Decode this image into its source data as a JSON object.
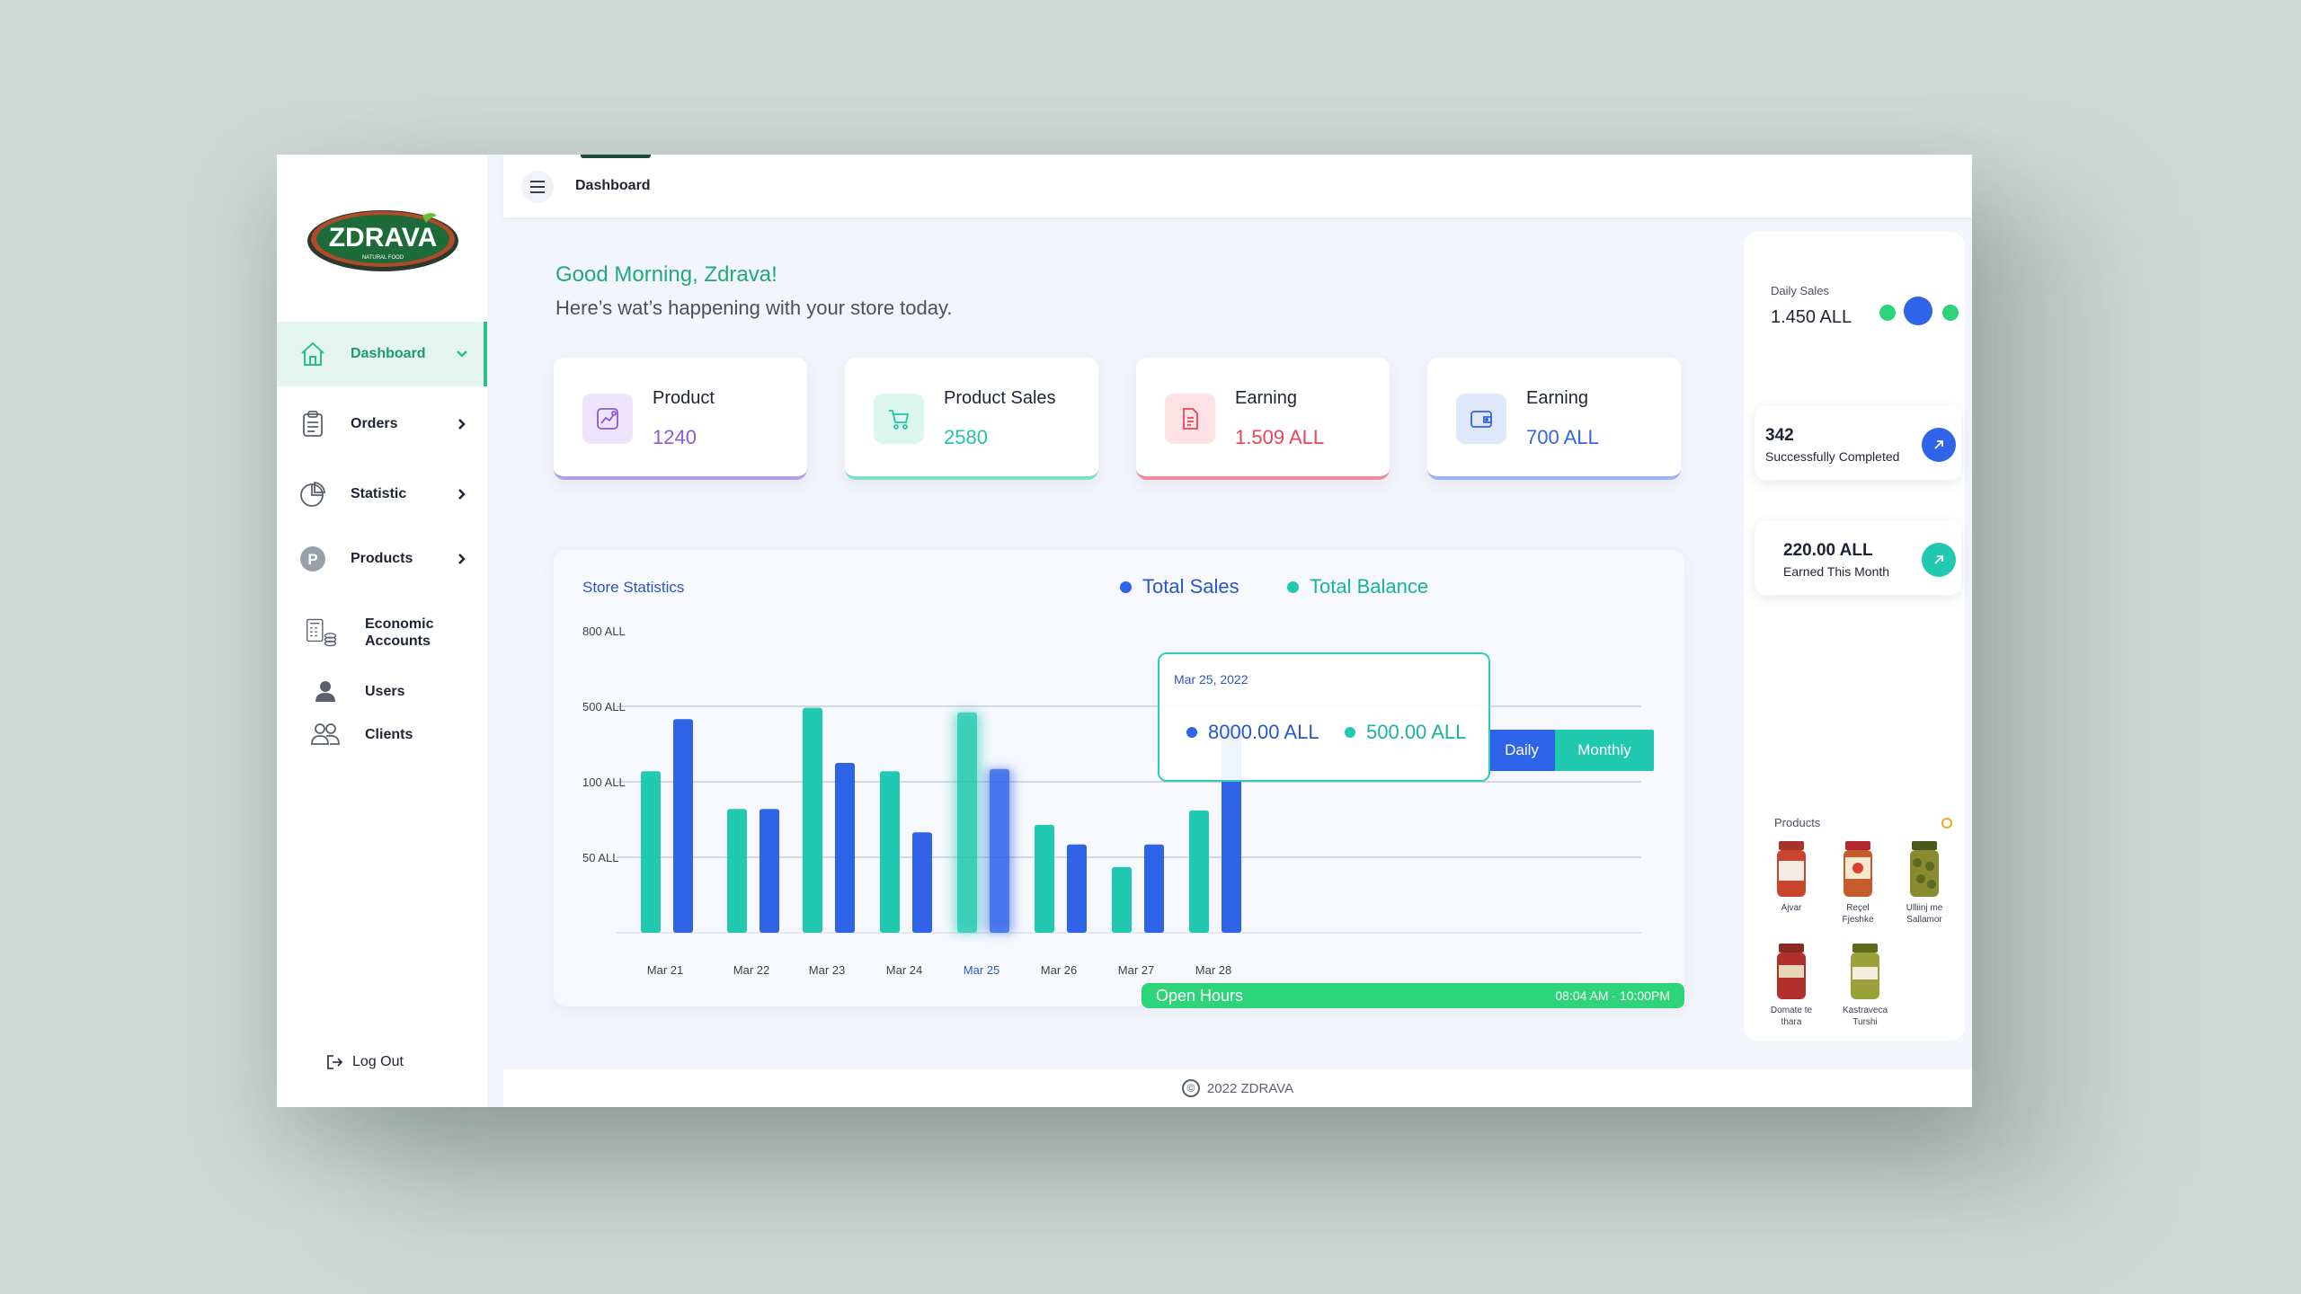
{
  "app": {
    "brand": "ZDRAVA",
    "brand_tagline": "NATURAL FOOD"
  },
  "sidebar": {
    "items": [
      {
        "label": "Dashboard",
        "icon": "home-icon"
      },
      {
        "label": "Orders",
        "icon": "clipboard-icon"
      },
      {
        "label": "Statistic",
        "icon": "pie-chart-icon"
      },
      {
        "label": "Products",
        "icon": "products-p-icon"
      }
    ],
    "sub_items": [
      {
        "label_line1": "Economic",
        "label_line2": "Accounts",
        "icon": "calculator-coins-icon"
      },
      {
        "label": "Users",
        "icon": "user-icon"
      },
      {
        "label": "Clients",
        "icon": "clients-icon"
      }
    ],
    "logout_label": "Log Out"
  },
  "header": {
    "title": "Dashboard"
  },
  "greeting": {
    "title": "Good Morning, Zdrava!",
    "subtitle": "Here’s wat’s happening with your store today."
  },
  "stats": [
    {
      "label": "Product",
      "value": "1240",
      "color": "#8b5bd6",
      "icon": "trend-chart-icon"
    },
    {
      "label": "Product Sales",
      "value": "2580",
      "color": "#23c4a2",
      "icon": "cart-icon"
    },
    {
      "label": "Earning",
      "value": "1.509 ALL",
      "color": "#e8445b",
      "icon": "invoice-icon"
    },
    {
      "label": "Earning",
      "value": "700 ALL",
      "color": "#3464e0",
      "icon": "wallet-icon"
    }
  ],
  "store_statistics": {
    "title": "Store Statistics",
    "legend": [
      {
        "name": "Total Sales",
        "color": "#2f63e8"
      },
      {
        "name": "Total Balance",
        "color": "#20c9b0"
      }
    ],
    "toggle": {
      "daily": "Daily",
      "monthly": "Monthly",
      "active": "daily"
    },
    "tooltip": {
      "date": "Mar 25, 2022",
      "sales": "8000.00 ALL",
      "balance": "500.00 ALL"
    },
    "open_hours": {
      "label": "Open Hours",
      "time": "08:04 AM - 10:00PM"
    }
  },
  "chart_data": {
    "type": "bar",
    "categories": [
      "Mar 21",
      "Mar 22",
      "Mar 23",
      "Mar 24",
      "Mar 25",
      "Mar 26",
      "Mar 27",
      "Mar 28"
    ],
    "y_tick_labels": [
      "800 ALL",
      "500 ALL",
      "100 ALL",
      "50 ALL"
    ],
    "highlight_category": "Mar 25",
    "series": [
      {
        "name": "Total Balance",
        "color": "#20c9b0",
        "values": [
          2.14,
          1.64,
          2.98,
          2.14,
          2.92,
          1.43,
          0.87,
          1.62
        ]
      },
      {
        "name": "Total Sales",
        "color": "#2f63e8",
        "values": [
          2.83,
          1.64,
          2.25,
          1.33,
          2.17,
          1.17,
          1.17,
          2.71
        ]
      }
    ],
    "y_scale_note": "tick positions 0=baseline, 1=50 ALL, 2=100 ALL, 3=500 ALL, 4=800 ALL"
  },
  "right_panel": {
    "daily_sales_label": "Daily Sales",
    "daily_sales_value": "1.450 ALL",
    "completed": {
      "value": "342",
      "label": "Successfully Completed",
      "color": "#2f63e8"
    },
    "earned": {
      "value": "220.00 ALL",
      "label": "Earned This Month",
      "color": "#20c9b0"
    },
    "products_title": "Products",
    "products": [
      {
        "line1": "Ajvar",
        "line2": ""
      },
      {
        "line1": "Reçel",
        "line2": "Fjeshke"
      },
      {
        "line1": "Ulliinj me",
        "line2": "Sallamor"
      },
      {
        "line1": "Domate te",
        "line2": "thara"
      },
      {
        "line1": "Kastraveca",
        "line2": "Turshi"
      }
    ]
  },
  "footer": {
    "text": "2022 ZDRAVA"
  }
}
